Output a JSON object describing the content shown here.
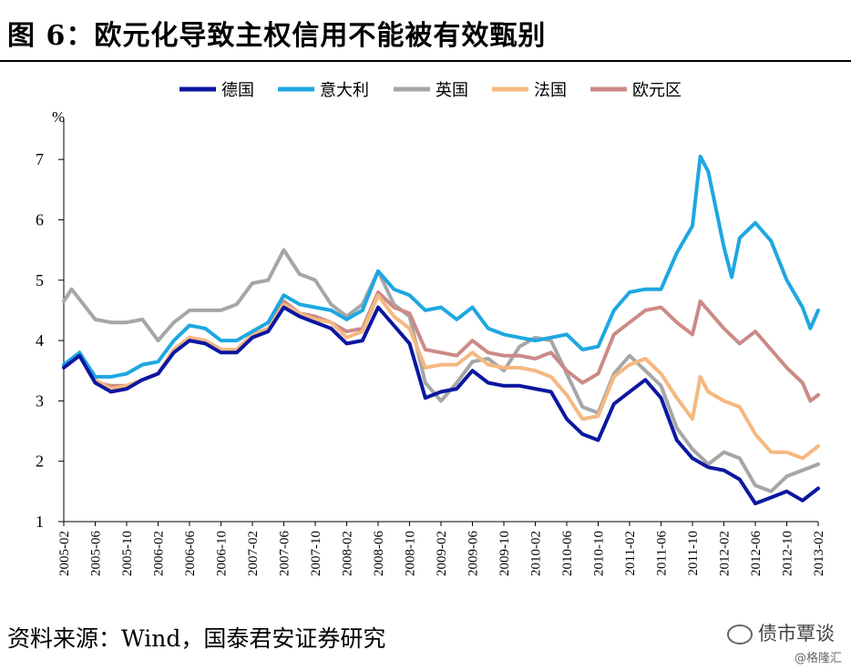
{
  "header": {
    "title": "图 6：欧元化导致主权信用不能被有效甄别"
  },
  "footer": {
    "source": "资料来源：Wind，国泰君安证券研究",
    "watermark": "债市覃谈",
    "sub_watermark": "@格隆汇"
  },
  "chart_data": {
    "type": "line",
    "ylabel": "%",
    "ylim": [
      1,
      7.5
    ],
    "yticks": [
      1,
      2,
      3,
      4,
      5,
      6,
      7
    ],
    "x_start": "2005-02",
    "x_end": "2013-02",
    "xtick_labels": [
      "2005-02",
      "2005-06",
      "2005-10",
      "2006-02",
      "2006-06",
      "2006-10",
      "2007-02",
      "2007-06",
      "2007-10",
      "2008-02",
      "2008-06",
      "2008-10",
      "2009-02",
      "2009-06",
      "2009-10",
      "2010-02",
      "2010-06",
      "2010-10",
      "2011-02",
      "2011-06",
      "2011-10",
      "2012-02",
      "2012-06",
      "2012-10",
      "2013-02"
    ],
    "legend_position": "top",
    "grid": false,
    "series": [
      {
        "name": "德国",
        "color": "#0b17a0",
        "points": [
          [
            "2005-02",
            3.55
          ],
          [
            "2005-04",
            3.75
          ],
          [
            "2005-06",
            3.3
          ],
          [
            "2005-08",
            3.15
          ],
          [
            "2005-10",
            3.2
          ],
          [
            "2005-12",
            3.35
          ],
          [
            "2006-02",
            3.45
          ],
          [
            "2006-04",
            3.8
          ],
          [
            "2006-06",
            4.0
          ],
          [
            "2006-08",
            3.95
          ],
          [
            "2006-10",
            3.8
          ],
          [
            "2006-12",
            3.8
          ],
          [
            "2007-02",
            4.05
          ],
          [
            "2007-04",
            4.15
          ],
          [
            "2007-06",
            4.55
          ],
          [
            "2007-08",
            4.4
          ],
          [
            "2007-10",
            4.3
          ],
          [
            "2007-12",
            4.2
          ],
          [
            "2008-02",
            3.95
          ],
          [
            "2008-04",
            4.0
          ],
          [
            "2008-06",
            4.55
          ],
          [
            "2008-08",
            4.25
          ],
          [
            "2008-10",
            3.95
          ],
          [
            "2008-12",
            3.05
          ],
          [
            "2009-02",
            3.15
          ],
          [
            "2009-04",
            3.2
          ],
          [
            "2009-06",
            3.5
          ],
          [
            "2009-08",
            3.3
          ],
          [
            "2009-10",
            3.25
          ],
          [
            "2009-12",
            3.25
          ],
          [
            "2010-02",
            3.2
          ],
          [
            "2010-04",
            3.15
          ],
          [
            "2010-06",
            2.7
          ],
          [
            "2010-08",
            2.45
          ],
          [
            "2010-10",
            2.35
          ],
          [
            "2010-12",
            2.95
          ],
          [
            "2011-02",
            3.15
          ],
          [
            "2011-04",
            3.35
          ],
          [
            "2011-06",
            3.05
          ],
          [
            "2011-08",
            2.35
          ],
          [
            "2011-10",
            2.05
          ],
          [
            "2011-12",
            1.9
          ],
          [
            "2012-02",
            1.85
          ],
          [
            "2012-04",
            1.7
          ],
          [
            "2012-06",
            1.3
          ],
          [
            "2012-08",
            1.4
          ],
          [
            "2012-10",
            1.5
          ],
          [
            "2012-12",
            1.35
          ],
          [
            "2013-02",
            1.55
          ]
        ]
      },
      {
        "name": "意大利",
        "color": "#1ea7e1",
        "points": [
          [
            "2005-02",
            3.6
          ],
          [
            "2005-04",
            3.8
          ],
          [
            "2005-06",
            3.4
          ],
          [
            "2005-08",
            3.4
          ],
          [
            "2005-10",
            3.45
          ],
          [
            "2005-12",
            3.6
          ],
          [
            "2006-02",
            3.65
          ],
          [
            "2006-04",
            4.0
          ],
          [
            "2006-06",
            4.25
          ],
          [
            "2006-08",
            4.2
          ],
          [
            "2006-10",
            4.0
          ],
          [
            "2006-12",
            4.0
          ],
          [
            "2007-02",
            4.15
          ],
          [
            "2007-04",
            4.3
          ],
          [
            "2007-06",
            4.75
          ],
          [
            "2007-08",
            4.6
          ],
          [
            "2007-10",
            4.55
          ],
          [
            "2007-12",
            4.5
          ],
          [
            "2008-02",
            4.35
          ],
          [
            "2008-04",
            4.5
          ],
          [
            "2008-06",
            5.15
          ],
          [
            "2008-08",
            4.85
          ],
          [
            "2008-10",
            4.75
          ],
          [
            "2008-12",
            4.5
          ],
          [
            "2009-02",
            4.55
          ],
          [
            "2009-04",
            4.35
          ],
          [
            "2009-06",
            4.55
          ],
          [
            "2009-08",
            4.2
          ],
          [
            "2009-10",
            4.1
          ],
          [
            "2009-12",
            4.05
          ],
          [
            "2010-02",
            4.0
          ],
          [
            "2010-04",
            4.05
          ],
          [
            "2010-06",
            4.1
          ],
          [
            "2010-08",
            3.85
          ],
          [
            "2010-10",
            3.9
          ],
          [
            "2010-12",
            4.5
          ],
          [
            "2011-02",
            4.8
          ],
          [
            "2011-04",
            4.85
          ],
          [
            "2011-06",
            4.85
          ],
          [
            "2011-08",
            5.45
          ],
          [
            "2011-10",
            5.9
          ],
          [
            "2011-11",
            7.05
          ],
          [
            "2011-12",
            6.8
          ],
          [
            "2012-02",
            5.55
          ],
          [
            "2012-03",
            5.05
          ],
          [
            "2012-04",
            5.7
          ],
          [
            "2012-06",
            5.95
          ],
          [
            "2012-08",
            5.65
          ],
          [
            "2012-10",
            5.0
          ],
          [
            "2012-12",
            4.55
          ],
          [
            "2013-01",
            4.2
          ],
          [
            "2013-02",
            4.5
          ]
        ]
      },
      {
        "name": "英国",
        "color": "#a6a6a6",
        "points": [
          [
            "2005-02",
            4.65
          ],
          [
            "2005-03",
            4.85
          ],
          [
            "2005-06",
            4.35
          ],
          [
            "2005-08",
            4.3
          ],
          [
            "2005-10",
            4.3
          ],
          [
            "2005-12",
            4.35
          ],
          [
            "2006-02",
            4.0
          ],
          [
            "2006-04",
            4.3
          ],
          [
            "2006-06",
            4.5
          ],
          [
            "2006-08",
            4.5
          ],
          [
            "2006-10",
            4.5
          ],
          [
            "2006-12",
            4.6
          ],
          [
            "2007-02",
            4.95
          ],
          [
            "2007-04",
            5.0
          ],
          [
            "2007-06",
            5.5
          ],
          [
            "2007-08",
            5.1
          ],
          [
            "2007-10",
            5.0
          ],
          [
            "2007-12",
            4.6
          ],
          [
            "2008-02",
            4.4
          ],
          [
            "2008-04",
            4.6
          ],
          [
            "2008-06",
            5.15
          ],
          [
            "2008-08",
            4.6
          ],
          [
            "2008-10",
            4.4
          ],
          [
            "2008-12",
            3.3
          ],
          [
            "2009-02",
            3.0
          ],
          [
            "2009-04",
            3.3
          ],
          [
            "2009-06",
            3.65
          ],
          [
            "2009-08",
            3.7
          ],
          [
            "2009-10",
            3.5
          ],
          [
            "2009-12",
            3.9
          ],
          [
            "2010-02",
            4.05
          ],
          [
            "2010-04",
            4.0
          ],
          [
            "2010-06",
            3.45
          ],
          [
            "2010-08",
            2.9
          ],
          [
            "2010-10",
            2.8
          ],
          [
            "2010-12",
            3.45
          ],
          [
            "2011-02",
            3.75
          ],
          [
            "2011-04",
            3.5
          ],
          [
            "2011-06",
            3.25
          ],
          [
            "2011-08",
            2.55
          ],
          [
            "2011-10",
            2.2
          ],
          [
            "2011-12",
            1.95
          ],
          [
            "2012-02",
            2.15
          ],
          [
            "2012-04",
            2.05
          ],
          [
            "2012-06",
            1.6
          ],
          [
            "2012-08",
            1.5
          ],
          [
            "2012-10",
            1.75
          ],
          [
            "2012-12",
            1.85
          ],
          [
            "2013-02",
            1.95
          ]
        ]
      },
      {
        "name": "法国",
        "color": "#f5b880",
        "points": [
          [
            "2005-02",
            3.6
          ],
          [
            "2005-04",
            3.75
          ],
          [
            "2005-06",
            3.35
          ],
          [
            "2005-08",
            3.2
          ],
          [
            "2005-10",
            3.25
          ],
          [
            "2005-12",
            3.35
          ],
          [
            "2006-02",
            3.45
          ],
          [
            "2006-04",
            3.85
          ],
          [
            "2006-06",
            4.05
          ],
          [
            "2006-08",
            4.0
          ],
          [
            "2006-10",
            3.85
          ],
          [
            "2006-12",
            3.85
          ],
          [
            "2007-02",
            4.1
          ],
          [
            "2007-04",
            4.2
          ],
          [
            "2007-06",
            4.6
          ],
          [
            "2007-08",
            4.45
          ],
          [
            "2007-10",
            4.35
          ],
          [
            "2007-12",
            4.3
          ],
          [
            "2008-02",
            4.05
          ],
          [
            "2008-04",
            4.15
          ],
          [
            "2008-06",
            4.75
          ],
          [
            "2008-08",
            4.4
          ],
          [
            "2008-10",
            4.2
          ],
          [
            "2008-12",
            3.55
          ],
          [
            "2009-02",
            3.6
          ],
          [
            "2009-04",
            3.6
          ],
          [
            "2009-06",
            3.8
          ],
          [
            "2009-08",
            3.6
          ],
          [
            "2009-10",
            3.55
          ],
          [
            "2009-12",
            3.55
          ],
          [
            "2010-02",
            3.5
          ],
          [
            "2010-04",
            3.4
          ],
          [
            "2010-06",
            3.1
          ],
          [
            "2010-08",
            2.7
          ],
          [
            "2010-10",
            2.75
          ],
          [
            "2010-12",
            3.4
          ],
          [
            "2011-02",
            3.6
          ],
          [
            "2011-04",
            3.7
          ],
          [
            "2011-06",
            3.45
          ],
          [
            "2011-08",
            3.05
          ],
          [
            "2011-10",
            2.7
          ],
          [
            "2011-11",
            3.4
          ],
          [
            "2011-12",
            3.15
          ],
          [
            "2012-02",
            3.0
          ],
          [
            "2012-04",
            2.9
          ],
          [
            "2012-06",
            2.45
          ],
          [
            "2012-08",
            2.15
          ],
          [
            "2012-10",
            2.15
          ],
          [
            "2012-12",
            2.05
          ],
          [
            "2013-02",
            2.25
          ]
        ]
      },
      {
        "name": "欧元区",
        "color": "#cc8a87",
        "points": [
          [
            "2005-02",
            3.6
          ],
          [
            "2005-04",
            3.75
          ],
          [
            "2005-06",
            3.3
          ],
          [
            "2005-08",
            3.25
          ],
          [
            "2005-10",
            3.25
          ],
          [
            "2005-12",
            3.35
          ],
          [
            "2006-02",
            3.45
          ],
          [
            "2006-04",
            3.85
          ],
          [
            "2006-06",
            4.05
          ],
          [
            "2006-08",
            4.0
          ],
          [
            "2006-10",
            3.85
          ],
          [
            "2006-12",
            3.85
          ],
          [
            "2007-02",
            4.05
          ],
          [
            "2007-04",
            4.2
          ],
          [
            "2007-06",
            4.65
          ],
          [
            "2007-08",
            4.45
          ],
          [
            "2007-10",
            4.4
          ],
          [
            "2007-12",
            4.3
          ],
          [
            "2008-02",
            4.15
          ],
          [
            "2008-04",
            4.2
          ],
          [
            "2008-06",
            4.8
          ],
          [
            "2008-08",
            4.55
          ],
          [
            "2008-10",
            4.45
          ],
          [
            "2008-12",
            3.85
          ],
          [
            "2009-02",
            3.8
          ],
          [
            "2009-04",
            3.75
          ],
          [
            "2009-06",
            4.0
          ],
          [
            "2009-08",
            3.8
          ],
          [
            "2009-10",
            3.75
          ],
          [
            "2009-12",
            3.75
          ],
          [
            "2010-02",
            3.7
          ],
          [
            "2010-04",
            3.8
          ],
          [
            "2010-06",
            3.5
          ],
          [
            "2010-08",
            3.3
          ],
          [
            "2010-10",
            3.45
          ],
          [
            "2010-12",
            4.1
          ],
          [
            "2011-02",
            4.3
          ],
          [
            "2011-04",
            4.5
          ],
          [
            "2011-06",
            4.55
          ],
          [
            "2011-08",
            4.3
          ],
          [
            "2011-10",
            4.1
          ],
          [
            "2011-11",
            4.65
          ],
          [
            "2011-12",
            4.5
          ],
          [
            "2012-02",
            4.2
          ],
          [
            "2012-04",
            3.95
          ],
          [
            "2012-06",
            4.15
          ],
          [
            "2012-08",
            3.85
          ],
          [
            "2012-10",
            3.55
          ],
          [
            "2012-12",
            3.3
          ],
          [
            "2013-01",
            3.0
          ],
          [
            "2013-02",
            3.1
          ]
        ]
      }
    ]
  }
}
